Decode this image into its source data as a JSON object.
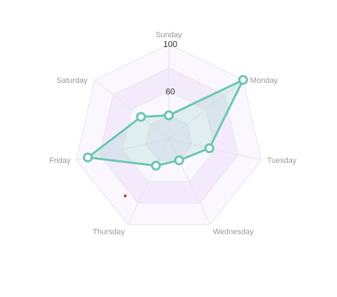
{
  "chart_data": {
    "type": "radar",
    "categories": [
      "Sunday",
      "Monday",
      "Tuesday",
      "Wednesday",
      "Thursday",
      "Friday",
      "Saturday"
    ],
    "series": [
      {
        "values": [
          40,
          100,
          55,
          40,
          45,
          90,
          50
        ]
      }
    ],
    "rlim": [
      20,
      100
    ],
    "tick_labels": [
      "60",
      "100"
    ],
    "colors": {
      "line": "#6ac5b3",
      "fill": "#6ac5b3",
      "point_fill": "#ffffff",
      "band_dark": "#f3ebfb",
      "band_light": "#faf7fe",
      "grid": "#e8e3f0",
      "label": "#999999",
      "tick": "#333333"
    }
  }
}
